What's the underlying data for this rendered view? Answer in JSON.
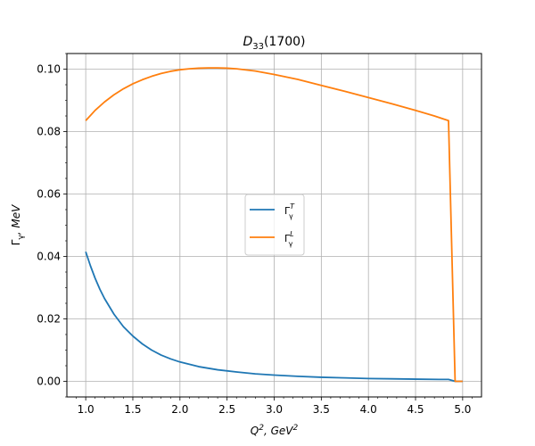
{
  "chart_data": {
    "type": "line",
    "title": {
      "main": "D",
      "sub": "33",
      "rest": "(1700)"
    },
    "xlabel": {
      "base": "Q",
      "sup1": "2",
      "mid": ", GeV",
      "sup2": "2"
    },
    "ylabel": {
      "main": "Γ",
      "sub": "γ",
      "rest": ", MeV"
    },
    "xlim": [
      0.8,
      5.2
    ],
    "ylim": [
      -0.005,
      0.105
    ],
    "xticks": [
      1.0,
      1.5,
      2.0,
      2.5,
      3.0,
      3.5,
      4.0,
      4.5,
      5.0
    ],
    "xtick_labels": [
      "1.0",
      "1.5",
      "2.0",
      "2.5",
      "3.0",
      "3.5",
      "4.0",
      "4.5",
      "5.0"
    ],
    "yticks": [
      0.0,
      0.02,
      0.04,
      0.06,
      0.08,
      0.1
    ],
    "ytick_labels": [
      "0.00",
      "0.02",
      "0.04",
      "0.06",
      "0.08",
      "0.10"
    ],
    "grid": true,
    "legend_position": "center",
    "series": [
      {
        "name": "Γγ^T",
        "legend": {
          "main": "Γ",
          "sub": "γ",
          "sup": "T"
        },
        "color": "#1f77b4",
        "x": [
          1.0,
          1.05,
          1.1,
          1.15,
          1.2,
          1.3,
          1.4,
          1.5,
          1.6,
          1.7,
          1.8,
          1.9,
          2.0,
          2.2,
          2.4,
          2.6,
          2.8,
          3.0,
          3.25,
          3.5,
          3.75,
          4.0,
          4.25,
          4.5,
          4.75,
          4.85,
          4.92,
          5.0
        ],
        "y": [
          0.0415,
          0.037,
          0.033,
          0.0295,
          0.0265,
          0.0215,
          0.0175,
          0.0145,
          0.012,
          0.01,
          0.0084,
          0.0072,
          0.0062,
          0.0047,
          0.0037,
          0.003,
          0.0024,
          0.002,
          0.0016,
          0.0013,
          0.0011,
          0.0009,
          0.0008,
          0.0007,
          0.0006,
          0.0006,
          0.0,
          0.0
        ]
      },
      {
        "name": "Γγ^L",
        "legend": {
          "main": "Γ",
          "sub": "γ",
          "sup": "L"
        },
        "color": "#ff7f0e",
        "x": [
          1.0,
          1.1,
          1.2,
          1.3,
          1.4,
          1.5,
          1.6,
          1.7,
          1.8,
          1.9,
          2.0,
          2.1,
          2.2,
          2.3,
          2.4,
          2.5,
          2.6,
          2.8,
          3.0,
          3.25,
          3.5,
          3.75,
          4.0,
          4.25,
          4.5,
          4.7,
          4.85,
          4.92,
          5.0
        ],
        "y": [
          0.0835,
          0.0868,
          0.0895,
          0.0918,
          0.0937,
          0.0953,
          0.0966,
          0.0977,
          0.0986,
          0.0993,
          0.0998,
          0.1001,
          0.1003,
          0.1004,
          0.1004,
          0.1003,
          0.1001,
          0.0994,
          0.0983,
          0.0967,
          0.0948,
          0.0929,
          0.0909,
          0.0889,
          0.0868,
          0.085,
          0.0835,
          0.0,
          0.0
        ]
      }
    ]
  }
}
